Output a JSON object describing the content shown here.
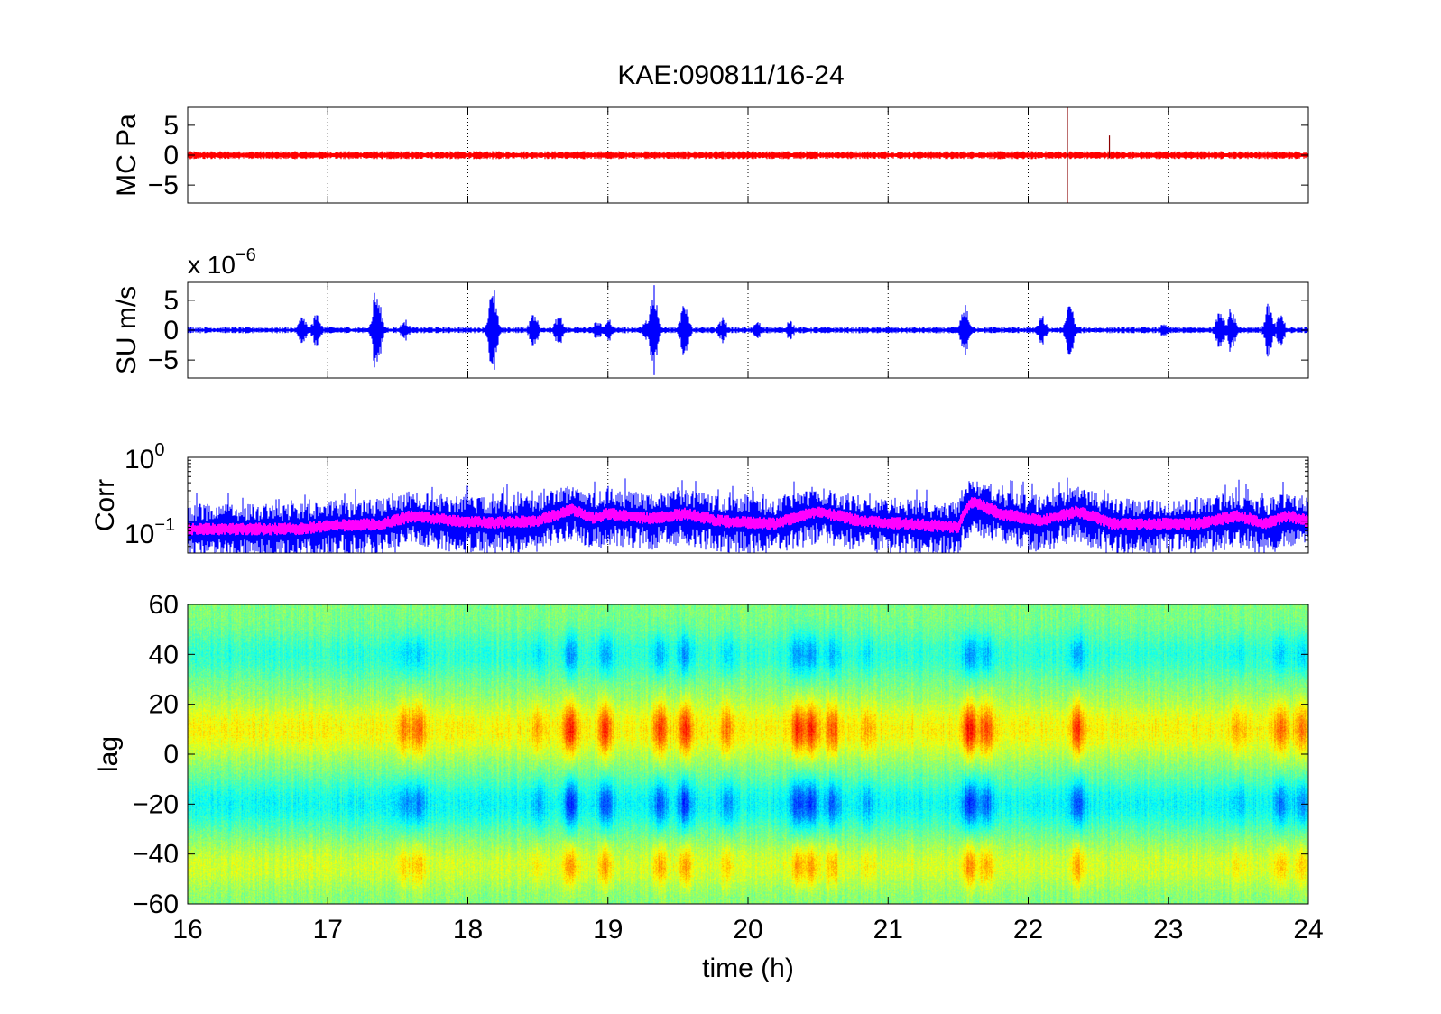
{
  "figure": {
    "title": "KAE:090811/16-24",
    "xlabel": "time (h)",
    "x_ticks": [
      16,
      17,
      18,
      19,
      20,
      21,
      22,
      23,
      24
    ]
  },
  "chart_data": [
    {
      "type": "line",
      "panel": "pressure",
      "ylabel": "MC Pa",
      "xlim": [
        16,
        24
      ],
      "ylim": [
        -8,
        8
      ],
      "y_ticks": [
        "5",
        "0",
        "−5"
      ],
      "y_tick_values": [
        5,
        0,
        -5
      ],
      "grid": "x-dotted",
      "series": [
        {
          "color": "#ff0000",
          "baseline": 0,
          "noise_amplitude": 0.45,
          "spikes": [
            {
              "x": 22.28,
              "y_min": -8,
              "y_max": 8
            },
            {
              "x": 22.58,
              "y_min": -0.5,
              "y_max": 3.3
            }
          ]
        }
      ]
    },
    {
      "type": "line",
      "panel": "seismic",
      "ylabel": "SU m/s",
      "exponent_label_base": "x 10",
      "exponent_label_power": "−6",
      "xlim": [
        16,
        24
      ],
      "ylim": [
        -8,
        8
      ],
      "y_ticks": [
        "5",
        "0",
        "−5"
      ],
      "y_tick_values": [
        5,
        0,
        -5
      ],
      "grid": "x-dotted",
      "series": [
        {
          "color": "#0000ff",
          "baseline": 0,
          "noise_amplitude": 0.35,
          "bursts": [
            {
              "x": 16.82,
              "amp": 2.5
            },
            {
              "x": 16.92,
              "amp": 3.0
            },
            {
              "x": 17.35,
              "amp": 8.0
            },
            {
              "x": 17.55,
              "amp": 2.0
            },
            {
              "x": 18.18,
              "amp": 8.0
            },
            {
              "x": 18.47,
              "amp": 3.5
            },
            {
              "x": 18.65,
              "amp": 2.8
            },
            {
              "x": 18.93,
              "amp": 2.0
            },
            {
              "x": 19.0,
              "amp": 2.2
            },
            {
              "x": 19.28,
              "amp": 2.0
            },
            {
              "x": 19.33,
              "amp": 8.0
            },
            {
              "x": 19.55,
              "amp": 6.0
            },
            {
              "x": 19.82,
              "amp": 2.2
            },
            {
              "x": 20.07,
              "amp": 1.5
            },
            {
              "x": 20.3,
              "amp": 1.8
            },
            {
              "x": 21.55,
              "amp": 5.0
            },
            {
              "x": 22.1,
              "amp": 2.5
            },
            {
              "x": 22.3,
              "amp": 5.0
            },
            {
              "x": 22.97,
              "amp": 1.3
            },
            {
              "x": 23.37,
              "amp": 5.0
            },
            {
              "x": 23.45,
              "amp": 4.0
            },
            {
              "x": 23.72,
              "amp": 5.0
            },
            {
              "x": 23.8,
              "amp": 3.0
            }
          ]
        }
      ]
    },
    {
      "type": "line",
      "panel": "correlation",
      "ylabel": "Corr",
      "xlim": [
        16,
        24
      ],
      "yscale": "log",
      "ylim": [
        0.0316,
        1
      ],
      "y_ticks": [
        {
          "base": "10",
          "power": "0",
          "value": 1
        },
        {
          "base": "10",
          "power": "−1",
          "value": 0.1
        }
      ],
      "grid": "x-dotted",
      "series": [
        {
          "color": "#0000ff",
          "style": "raw"
        },
        {
          "color": "#ff00ff",
          "style": "smoothed"
        }
      ],
      "level_profile": [
        {
          "x": 16.0,
          "y": 0.075
        },
        {
          "x": 16.8,
          "y": 0.075
        },
        {
          "x": 17.0,
          "y": 0.085
        },
        {
          "x": 17.4,
          "y": 0.09
        },
        {
          "x": 17.6,
          "y": 0.12
        },
        {
          "x": 17.9,
          "y": 0.1
        },
        {
          "x": 18.2,
          "y": 0.095
        },
        {
          "x": 18.5,
          "y": 0.1
        },
        {
          "x": 18.75,
          "y": 0.15
        },
        {
          "x": 18.9,
          "y": 0.11
        },
        {
          "x": 19.0,
          "y": 0.13
        },
        {
          "x": 19.3,
          "y": 0.11
        },
        {
          "x": 19.55,
          "y": 0.13
        },
        {
          "x": 19.8,
          "y": 0.1
        },
        {
          "x": 20.2,
          "y": 0.09
        },
        {
          "x": 20.5,
          "y": 0.14
        },
        {
          "x": 20.8,
          "y": 0.1
        },
        {
          "x": 21.5,
          "y": 0.08
        },
        {
          "x": 21.6,
          "y": 0.2
        },
        {
          "x": 21.8,
          "y": 0.13
        },
        {
          "x": 22.1,
          "y": 0.1
        },
        {
          "x": 22.35,
          "y": 0.14
        },
        {
          "x": 22.6,
          "y": 0.09
        },
        {
          "x": 23.2,
          "y": 0.09
        },
        {
          "x": 23.5,
          "y": 0.12
        },
        {
          "x": 23.7,
          "y": 0.09
        },
        {
          "x": 23.85,
          "y": 0.12
        },
        {
          "x": 24.0,
          "y": 0.1
        }
      ]
    },
    {
      "type": "heatmap",
      "panel": "lag",
      "ylabel": "lag",
      "xlim": [
        16,
        24
      ],
      "ylim": [
        -60,
        60
      ],
      "y_ticks": [
        "60",
        "40",
        "20",
        "0",
        "−20",
        "−40",
        "−60"
      ],
      "y_tick_values": [
        60,
        40,
        20,
        0,
        -20,
        -40,
        -60
      ],
      "colormap": "jet",
      "pattern": "alternating bands: positive near lag 10 and -45, negative near lag 40 and -20",
      "events": [
        {
          "x": 17.55,
          "strength": 0.45
        },
        {
          "x": 17.65,
          "strength": 0.55
        },
        {
          "x": 18.5,
          "strength": 0.35
        },
        {
          "x": 18.73,
          "strength": 0.95
        },
        {
          "x": 18.98,
          "strength": 0.8
        },
        {
          "x": 19.37,
          "strength": 0.75
        },
        {
          "x": 19.55,
          "strength": 0.85
        },
        {
          "x": 19.85,
          "strength": 0.5
        },
        {
          "x": 20.35,
          "strength": 0.8
        },
        {
          "x": 20.45,
          "strength": 0.85
        },
        {
          "x": 20.6,
          "strength": 0.7
        },
        {
          "x": 20.85,
          "strength": 0.35
        },
        {
          "x": 21.58,
          "strength": 1.0
        },
        {
          "x": 21.7,
          "strength": 0.7
        },
        {
          "x": 22.35,
          "strength": 0.8
        },
        {
          "x": 23.5,
          "strength": 0.3
        },
        {
          "x": 23.8,
          "strength": 0.6
        },
        {
          "x": 23.95,
          "strength": 0.5
        }
      ]
    }
  ]
}
